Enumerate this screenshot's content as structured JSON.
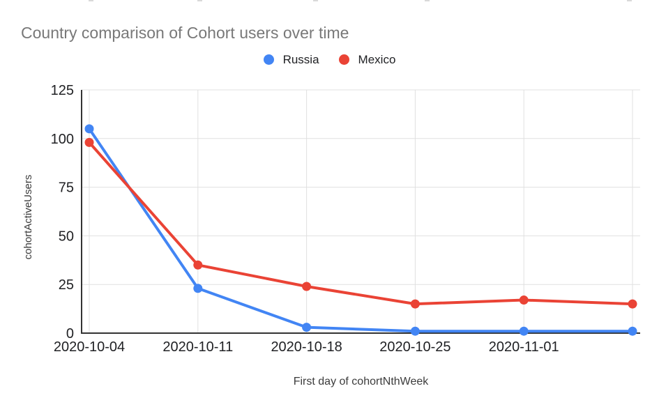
{
  "chart_data": {
    "type": "line",
    "title": "Country comparison of Cohort users over time",
    "xlabel": "First day of cohortNthWeek",
    "ylabel": "cohortActiveUsers",
    "categories": [
      "2020-10-04",
      "2020-10-11",
      "2020-10-18",
      "2020-10-25",
      "2020-11-01",
      ""
    ],
    "series": [
      {
        "name": "Russia",
        "color": "#4285F4",
        "values": [
          105,
          23,
          3,
          1,
          1,
          1
        ]
      },
      {
        "name": "Mexico",
        "color": "#EA4335",
        "values": [
          98,
          35,
          24,
          15,
          17,
          15
        ]
      }
    ],
    "ylim": [
      0,
      125
    ],
    "y_ticks": [
      0,
      25,
      50,
      75,
      100,
      125
    ],
    "grid": true,
    "legend_position": "top-center",
    "colors": {
      "axis": "#333333",
      "gridline": "#e0e0e0",
      "tick_label": "#202124",
      "title_text": "#787878",
      "axis_title_text": "#3c3c3c"
    }
  }
}
